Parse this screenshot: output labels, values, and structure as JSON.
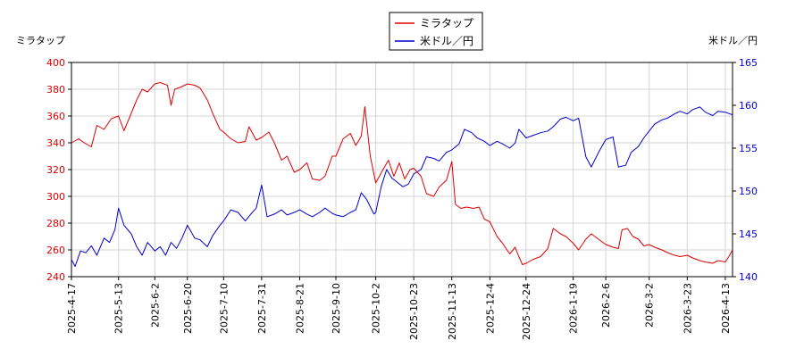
{
  "chart_data": {
    "type": "line",
    "left_axis_label": "ミラタップ",
    "right_axis_label": "米ドル／円",
    "legend_position": "top-center",
    "grid": true,
    "left_ylim": [
      240,
      400
    ],
    "right_ylim": [
      140,
      165
    ],
    "left_yticks": [
      240,
      260,
      280,
      300,
      320,
      340,
      360,
      380,
      400
    ],
    "right_yticks": [
      140,
      145,
      150,
      155,
      160,
      165
    ],
    "x_range": [
      "2025-04-17",
      "2026-04-17"
    ],
    "x_ticks": [
      "2025-4-17",
      "2025-5-13",
      "2025-6-2",
      "2025-6-20",
      "2025-7-10",
      "2025-7-31",
      "2025-8-21",
      "2025-9-10",
      "2025-10-2",
      "2025-10-23",
      "2025-11-13",
      "2025-12-4",
      "2025-12-24",
      "2026-1-19",
      "2026-2-6",
      "2026-3-2",
      "2026-3-23",
      "2026-4-13"
    ],
    "series": [
      {
        "name": "ミラタップ",
        "axis": "left",
        "color": "#dd0000",
        "points": [
          [
            "2025-04-17",
            340
          ],
          [
            "2025-04-21",
            343
          ],
          [
            "2025-04-24",
            340
          ],
          [
            "2025-04-28",
            337
          ],
          [
            "2025-05-01",
            353
          ],
          [
            "2025-05-05",
            350
          ],
          [
            "2025-05-09",
            358
          ],
          [
            "2025-05-13",
            360
          ],
          [
            "2025-05-16",
            349
          ],
          [
            "2025-05-20",
            362
          ],
          [
            "2025-05-23",
            372
          ],
          [
            "2025-05-26",
            380
          ],
          [
            "2025-05-29",
            378
          ],
          [
            "2025-06-02",
            384
          ],
          [
            "2025-06-05",
            385
          ],
          [
            "2025-06-09",
            383
          ],
          [
            "2025-06-11",
            368
          ],
          [
            "2025-06-13",
            380
          ],
          [
            "2025-06-17",
            382
          ],
          [
            "2025-06-20",
            384
          ],
          [
            "2025-06-24",
            383
          ],
          [
            "2025-06-27",
            381
          ],
          [
            "2025-07-01",
            372
          ],
          [
            "2025-07-04",
            362
          ],
          [
            "2025-07-08",
            350
          ],
          [
            "2025-07-10",
            348
          ],
          [
            "2025-07-14",
            343
          ],
          [
            "2025-07-18",
            340
          ],
          [
            "2025-07-22",
            341
          ],
          [
            "2025-07-24",
            352
          ],
          [
            "2025-07-28",
            342
          ],
          [
            "2025-07-31",
            344
          ],
          [
            "2025-08-04",
            348
          ],
          [
            "2025-08-07",
            340
          ],
          [
            "2025-08-11",
            327
          ],
          [
            "2025-08-14",
            330
          ],
          [
            "2025-08-18",
            318
          ],
          [
            "2025-08-21",
            320
          ],
          [
            "2025-08-25",
            325
          ],
          [
            "2025-08-28",
            313
          ],
          [
            "2025-09-01",
            312
          ],
          [
            "2025-09-04",
            315
          ],
          [
            "2025-09-08",
            330
          ],
          [
            "2025-09-10",
            330
          ],
          [
            "2025-09-14",
            343
          ],
          [
            "2025-09-18",
            347
          ],
          [
            "2025-09-21",
            338
          ],
          [
            "2025-09-24",
            345
          ],
          [
            "2025-09-26",
            367
          ],
          [
            "2025-09-29",
            330
          ],
          [
            "2025-10-02",
            310
          ],
          [
            "2025-10-06",
            320
          ],
          [
            "2025-10-09",
            327
          ],
          [
            "2025-10-12",
            315
          ],
          [
            "2025-10-15",
            325
          ],
          [
            "2025-10-18",
            313
          ],
          [
            "2025-10-21",
            320
          ],
          [
            "2025-10-23",
            321
          ],
          [
            "2025-10-27",
            315
          ],
          [
            "2025-10-30",
            302
          ],
          [
            "2025-11-03",
            300
          ],
          [
            "2025-11-06",
            307
          ],
          [
            "2025-11-10",
            312
          ],
          [
            "2025-11-13",
            326
          ],
          [
            "2025-11-15",
            294
          ],
          [
            "2025-11-18",
            291
          ],
          [
            "2025-11-21",
            292
          ],
          [
            "2025-11-25",
            291
          ],
          [
            "2025-11-28",
            292
          ],
          [
            "2025-12-01",
            283
          ],
          [
            "2025-12-04",
            281
          ],
          [
            "2025-12-08",
            270
          ],
          [
            "2025-12-11",
            265
          ],
          [
            "2025-12-15",
            257
          ],
          [
            "2025-12-18",
            262
          ],
          [
            "2025-12-20",
            255
          ],
          [
            "2025-12-22",
            249
          ],
          [
            "2025-12-24",
            250
          ],
          [
            "2025-12-28",
            253
          ],
          [
            "2026-01-01",
            255
          ],
          [
            "2026-01-05",
            261
          ],
          [
            "2026-01-08",
            276
          ],
          [
            "2026-01-12",
            272
          ],
          [
            "2026-01-15",
            270
          ],
          [
            "2026-01-19",
            265
          ],
          [
            "2026-01-22",
            260
          ],
          [
            "2026-01-26",
            268
          ],
          [
            "2026-01-29",
            272
          ],
          [
            "2026-02-02",
            268
          ],
          [
            "2026-02-06",
            264
          ],
          [
            "2026-02-10",
            262
          ],
          [
            "2026-02-13",
            261
          ],
          [
            "2026-02-15",
            275
          ],
          [
            "2026-02-18",
            276
          ],
          [
            "2026-02-21",
            270
          ],
          [
            "2026-02-24",
            268
          ],
          [
            "2026-02-27",
            263
          ],
          [
            "2026-03-02",
            264
          ],
          [
            "2026-03-05",
            262
          ],
          [
            "2026-03-09",
            260
          ],
          [
            "2026-03-12",
            258
          ],
          [
            "2026-03-16",
            256
          ],
          [
            "2026-03-19",
            255
          ],
          [
            "2026-03-23",
            256
          ],
          [
            "2026-03-26",
            254
          ],
          [
            "2026-03-30",
            252
          ],
          [
            "2026-04-02",
            251
          ],
          [
            "2026-04-06",
            250
          ],
          [
            "2026-04-09",
            252
          ],
          [
            "2026-04-13",
            251
          ],
          [
            "2026-04-15",
            255
          ],
          [
            "2026-04-17",
            260
          ]
        ]
      },
      {
        "name": "米ドル／円",
        "axis": "right",
        "color": "#0000cc",
        "points": [
          [
            "2025-04-17",
            142.0
          ],
          [
            "2025-04-19",
            141.2
          ],
          [
            "2025-04-22",
            143.0
          ],
          [
            "2025-04-25",
            142.8
          ],
          [
            "2025-04-28",
            143.6
          ],
          [
            "2025-05-01",
            142.5
          ],
          [
            "2025-05-05",
            144.5
          ],
          [
            "2025-05-08",
            144.0
          ],
          [
            "2025-05-11",
            145.5
          ],
          [
            "2025-05-13",
            148.0
          ],
          [
            "2025-05-16",
            146.0
          ],
          [
            "2025-05-20",
            145.0
          ],
          [
            "2025-05-23",
            143.5
          ],
          [
            "2025-05-26",
            142.5
          ],
          [
            "2025-05-29",
            144.0
          ],
          [
            "2025-06-02",
            143.0
          ],
          [
            "2025-06-05",
            143.5
          ],
          [
            "2025-06-08",
            142.5
          ],
          [
            "2025-06-11",
            144.0
          ],
          [
            "2025-06-14",
            143.3
          ],
          [
            "2025-06-17",
            144.5
          ],
          [
            "2025-06-20",
            146.0
          ],
          [
            "2025-06-24",
            144.5
          ],
          [
            "2025-06-27",
            144.3
          ],
          [
            "2025-07-01",
            143.5
          ],
          [
            "2025-07-04",
            144.8
          ],
          [
            "2025-07-08",
            146.0
          ],
          [
            "2025-07-10",
            146.5
          ],
          [
            "2025-07-14",
            147.8
          ],
          [
            "2025-07-18",
            147.5
          ],
          [
            "2025-07-22",
            146.5
          ],
          [
            "2025-07-25",
            147.3
          ],
          [
            "2025-07-28",
            148.0
          ],
          [
            "2025-07-31",
            150.7
          ],
          [
            "2025-08-03",
            147.0
          ],
          [
            "2025-08-07",
            147.3
          ],
          [
            "2025-08-11",
            147.8
          ],
          [
            "2025-08-14",
            147.2
          ],
          [
            "2025-08-18",
            147.5
          ],
          [
            "2025-08-21",
            147.8
          ],
          [
            "2025-08-25",
            147.3
          ],
          [
            "2025-08-28",
            147.0
          ],
          [
            "2025-09-01",
            147.5
          ],
          [
            "2025-09-04",
            148.0
          ],
          [
            "2025-09-08",
            147.4
          ],
          [
            "2025-09-10",
            147.2
          ],
          [
            "2025-09-14",
            147.0
          ],
          [
            "2025-09-18",
            147.5
          ],
          [
            "2025-09-21",
            147.8
          ],
          [
            "2025-09-24",
            149.8
          ],
          [
            "2025-09-27",
            149.0
          ],
          [
            "2025-10-01",
            147.3
          ],
          [
            "2025-10-02",
            147.5
          ],
          [
            "2025-10-05",
            150.5
          ],
          [
            "2025-10-08",
            152.5
          ],
          [
            "2025-10-11",
            151.5
          ],
          [
            "2025-10-14",
            151.0
          ],
          [
            "2025-10-17",
            150.5
          ],
          [
            "2025-10-20",
            150.8
          ],
          [
            "2025-10-23",
            152.0
          ],
          [
            "2025-10-27",
            152.5
          ],
          [
            "2025-10-30",
            154.0
          ],
          [
            "2025-11-03",
            153.8
          ],
          [
            "2025-11-06",
            153.5
          ],
          [
            "2025-11-10",
            154.5
          ],
          [
            "2025-11-13",
            154.8
          ],
          [
            "2025-11-17",
            155.5
          ],
          [
            "2025-11-20",
            157.2
          ],
          [
            "2025-11-24",
            156.8
          ],
          [
            "2025-11-27",
            156.2
          ],
          [
            "2025-12-01",
            155.8
          ],
          [
            "2025-12-04",
            155.3
          ],
          [
            "2025-12-08",
            155.8
          ],
          [
            "2025-12-11",
            155.5
          ],
          [
            "2025-12-15",
            155.0
          ],
          [
            "2025-12-18",
            155.6
          ],
          [
            "2025-12-20",
            157.2
          ],
          [
            "2025-12-24",
            156.2
          ],
          [
            "2025-12-28",
            156.5
          ],
          [
            "2026-01-01",
            156.8
          ],
          [
            "2026-01-05",
            157.0
          ],
          [
            "2026-01-08",
            157.5
          ],
          [
            "2026-01-12",
            158.4
          ],
          [
            "2026-01-15",
            158.6
          ],
          [
            "2026-01-19",
            158.2
          ],
          [
            "2026-01-22",
            158.5
          ],
          [
            "2026-01-26",
            154.0
          ],
          [
            "2026-01-29",
            152.8
          ],
          [
            "2026-02-02",
            154.5
          ],
          [
            "2026-02-06",
            156.0
          ],
          [
            "2026-02-10",
            156.3
          ],
          [
            "2026-02-13",
            152.8
          ],
          [
            "2026-02-17",
            153.0
          ],
          [
            "2026-02-20",
            154.5
          ],
          [
            "2026-02-24",
            155.2
          ],
          [
            "2026-02-27",
            156.2
          ],
          [
            "2026-03-02",
            157.0
          ],
          [
            "2026-03-05",
            157.8
          ],
          [
            "2026-03-09",
            158.3
          ],
          [
            "2026-03-12",
            158.5
          ],
          [
            "2026-03-16",
            159.0
          ],
          [
            "2026-03-19",
            159.3
          ],
          [
            "2026-03-23",
            159.0
          ],
          [
            "2026-03-26",
            159.5
          ],
          [
            "2026-03-30",
            159.8
          ],
          [
            "2026-04-02",
            159.2
          ],
          [
            "2026-04-06",
            158.8
          ],
          [
            "2026-04-09",
            159.3
          ],
          [
            "2026-04-13",
            159.2
          ],
          [
            "2026-04-17",
            158.9
          ]
        ]
      }
    ]
  }
}
